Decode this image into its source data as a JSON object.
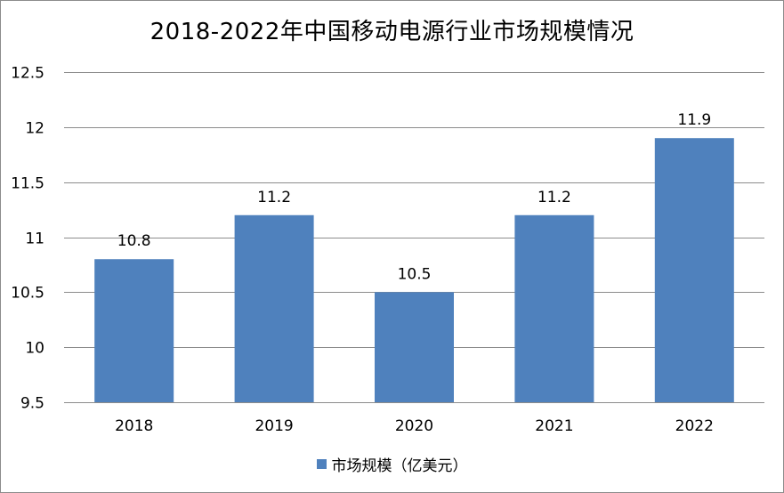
{
  "chart_data": {
    "type": "bar",
    "title": "2018-2022年中国移动电源行业市场规模情况",
    "categories": [
      "2018",
      "2019",
      "2020",
      "2021",
      "2022"
    ],
    "series": [
      {
        "name": "市场规模（亿美元）",
        "values": [
          10.8,
          11.2,
          10.5,
          11.2,
          11.9
        ],
        "color": "#4f81bd"
      }
    ],
    "data_labels": [
      "10.8",
      "11.2",
      "10.5",
      "11.2",
      "11.9"
    ],
    "yticks": [
      "9.5",
      "10",
      "10.5",
      "11",
      "11.5",
      "12",
      "12.5"
    ],
    "ylim": [
      9.5,
      12.5
    ],
    "xlabel": "",
    "ylabel": "",
    "grid": true,
    "legend_position": "bottom"
  }
}
